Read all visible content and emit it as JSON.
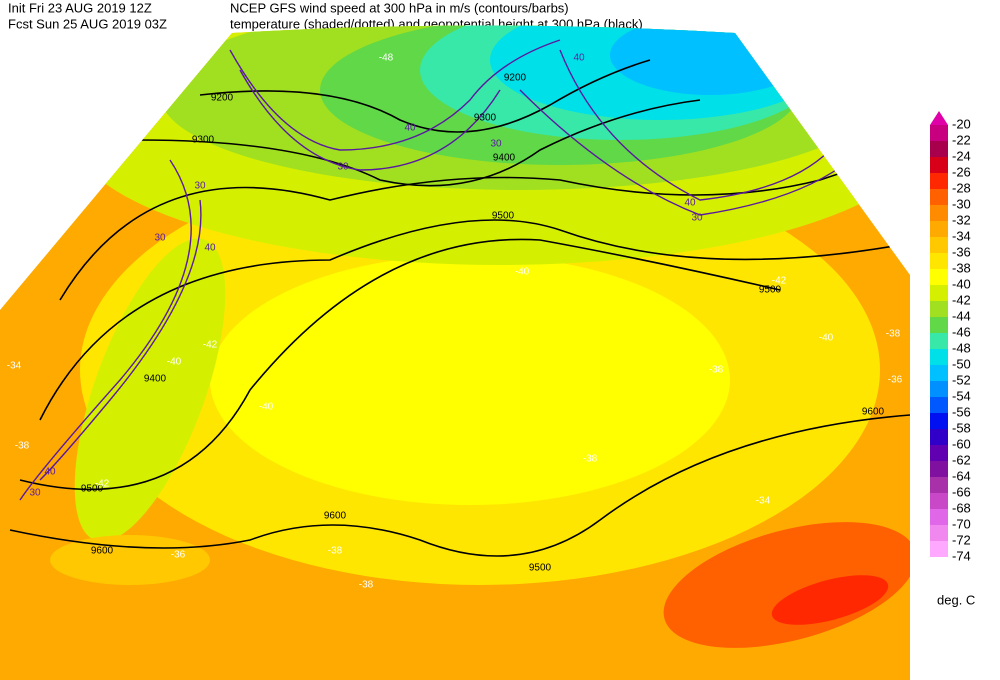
{
  "header": {
    "init": "Init  Fri 23 AUG 2019 12Z",
    "title": "NCEP GFS wind speed at 300 hPa in m/s (contours/barbs)",
    "fcst": "Fcst Sun 25 AUG 2019 03Z",
    "subtitle": "temperature (shaded/dotted) and geopotential height at 300 hPa (black)"
  },
  "legend": {
    "unit": "deg. C",
    "levels": [
      {
        "label": -20,
        "color": "#e000a8"
      },
      {
        "label": -22,
        "color": "#c80080"
      },
      {
        "label": -24,
        "color": "#a8004c"
      },
      {
        "label": -26,
        "color": "#d80018"
      },
      {
        "label": -28,
        "color": "#ff2800"
      },
      {
        "label": -30,
        "color": "#ff6000"
      },
      {
        "label": -32,
        "color": "#ff8c00"
      },
      {
        "label": -34,
        "color": "#ffaa00"
      },
      {
        "label": -36,
        "color": "#ffc800"
      },
      {
        "label": -38,
        "color": "#ffe600"
      },
      {
        "label": -40,
        "color": "#ffff00"
      },
      {
        "label": -42,
        "color": "#d4f000"
      },
      {
        "label": -44,
        "color": "#a0e020"
      },
      {
        "label": -46,
        "color": "#60d848"
      },
      {
        "label": -48,
        "color": "#38e8a8"
      },
      {
        "label": -50,
        "color": "#00e0e8"
      },
      {
        "label": -52,
        "color": "#00c0ff"
      },
      {
        "label": -54,
        "color": "#0090ff"
      },
      {
        "label": -56,
        "color": "#0058ff"
      },
      {
        "label": -58,
        "color": "#0010f0"
      },
      {
        "label": -60,
        "color": "#3000c8"
      },
      {
        "label": -62,
        "color": "#6000b0"
      },
      {
        "label": -64,
        "color": "#8010a0"
      },
      {
        "label": -66,
        "color": "#a830a8"
      },
      {
        "label": -68,
        "color": "#c848c8"
      },
      {
        "label": -70,
        "color": "#e068e8"
      },
      {
        "label": -72,
        "color": "#f088f0"
      },
      {
        "label": -74,
        "color": "#ffa8ff"
      }
    ]
  },
  "map": {
    "height_labels": [
      9200,
      9300,
      9400,
      9500,
      9500,
      9600,
      9600,
      9600,
      9500,
      9500,
      9400,
      9300,
      9200
    ],
    "temp_labels": [
      -40,
      -40,
      -38,
      -38,
      -38,
      -36,
      -34,
      -38,
      -38,
      -36,
      -40,
      -42,
      -34,
      -38,
      -42,
      -40,
      -42,
      -48
    ],
    "wind_labels": [
      30,
      30,
      40,
      40,
      30,
      30,
      40,
      30,
      40,
      30,
      40
    ]
  }
}
